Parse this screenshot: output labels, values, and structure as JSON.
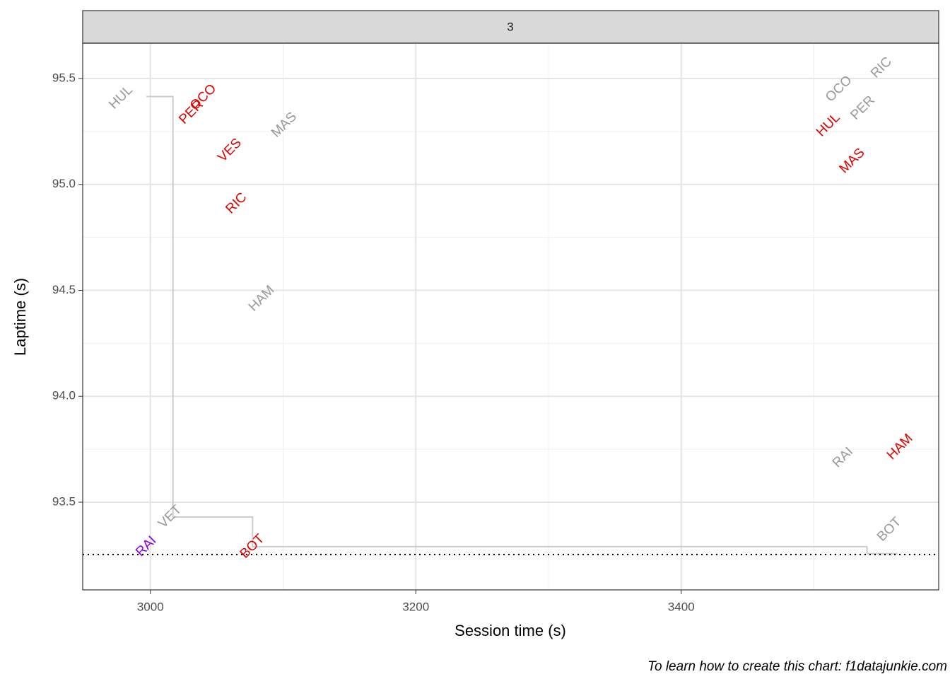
{
  "chart_data": {
    "type": "scatter",
    "facet": "3",
    "xlabel": "Session time (s)",
    "ylabel": "Laptime (s)",
    "caption": "To learn how to create this chart: f1datajunkie.com",
    "xlim": [
      2949,
      3594
    ],
    "ylim": [
      93.086,
      95.667
    ],
    "xticks": [
      3000,
      3200,
      3400
    ],
    "yticks": [
      {
        "value": 93.5,
        "label": "93.5"
      },
      {
        "value": 94,
        "label": "94.0"
      },
      {
        "value": 94.5,
        "label": "94.5"
      },
      {
        "value": 95,
        "label": "95.0"
      },
      {
        "value": 95.5,
        "label": "95.5"
      }
    ],
    "xminor": [
      3100,
      3300,
      3500
    ],
    "yminor": [
      93.25,
      93.75,
      94.25,
      94.75,
      95.25
    ],
    "grid": true,
    "points": [
      {
        "label": "HUL",
        "x": 2978,
        "y": 95.41,
        "color": "#999999"
      },
      {
        "label": "PER",
        "x": 3031,
        "y": 95.34,
        "color": "#e00000"
      },
      {
        "label": "OCO",
        "x": 3040,
        "y": 95.41,
        "color": "#e00000"
      },
      {
        "label": "VES",
        "x": 3060,
        "y": 95.16,
        "color": "#e00000"
      },
      {
        "label": "RIC",
        "x": 3065,
        "y": 94.91,
        "color": "#e00000"
      },
      {
        "label": "MAS",
        "x": 3101,
        "y": 95.28,
        "color": "#999999"
      },
      {
        "label": "HAM",
        "x": 3084,
        "y": 94.46,
        "color": "#999999"
      },
      {
        "label": "VET",
        "x": 3015,
        "y": 93.43,
        "color": "#999999"
      },
      {
        "label": "RAI",
        "x": 2997,
        "y": 93.29,
        "color": "#8a00e6"
      },
      {
        "label": "BOT",
        "x": 3077,
        "y": 93.29,
        "color": "#e00000"
      },
      {
        "label": "OCO",
        "x": 3519,
        "y": 95.45,
        "color": "#999999"
      },
      {
        "label": "RIC",
        "x": 3551,
        "y": 95.55,
        "color": "#999999"
      },
      {
        "label": "HUL",
        "x": 3511,
        "y": 95.28,
        "color": "#e00000"
      },
      {
        "label": "PER",
        "x": 3537,
        "y": 95.36,
        "color": "#999999"
      },
      {
        "label": "MAS",
        "x": 3529,
        "y": 95.11,
        "color": "#e00000"
      },
      {
        "label": "RAI",
        "x": 3522,
        "y": 93.71,
        "color": "#999999"
      },
      {
        "label": "HAM",
        "x": 3565,
        "y": 93.76,
        "color": "#e00000"
      },
      {
        "label": "BOT",
        "x": 3557,
        "y": 93.37,
        "color": "#999999"
      }
    ],
    "step": {
      "x": [
        2997,
        3017,
        3017,
        3077,
        3077,
        3540,
        3540,
        3563
      ],
      "y": [
        95.415,
        95.415,
        93.43,
        93.43,
        93.29,
        93.29,
        93.257,
        93.257
      ],
      "color": "#cccccc"
    },
    "hline": {
      "value": 93.253,
      "color": "#000000"
    }
  }
}
